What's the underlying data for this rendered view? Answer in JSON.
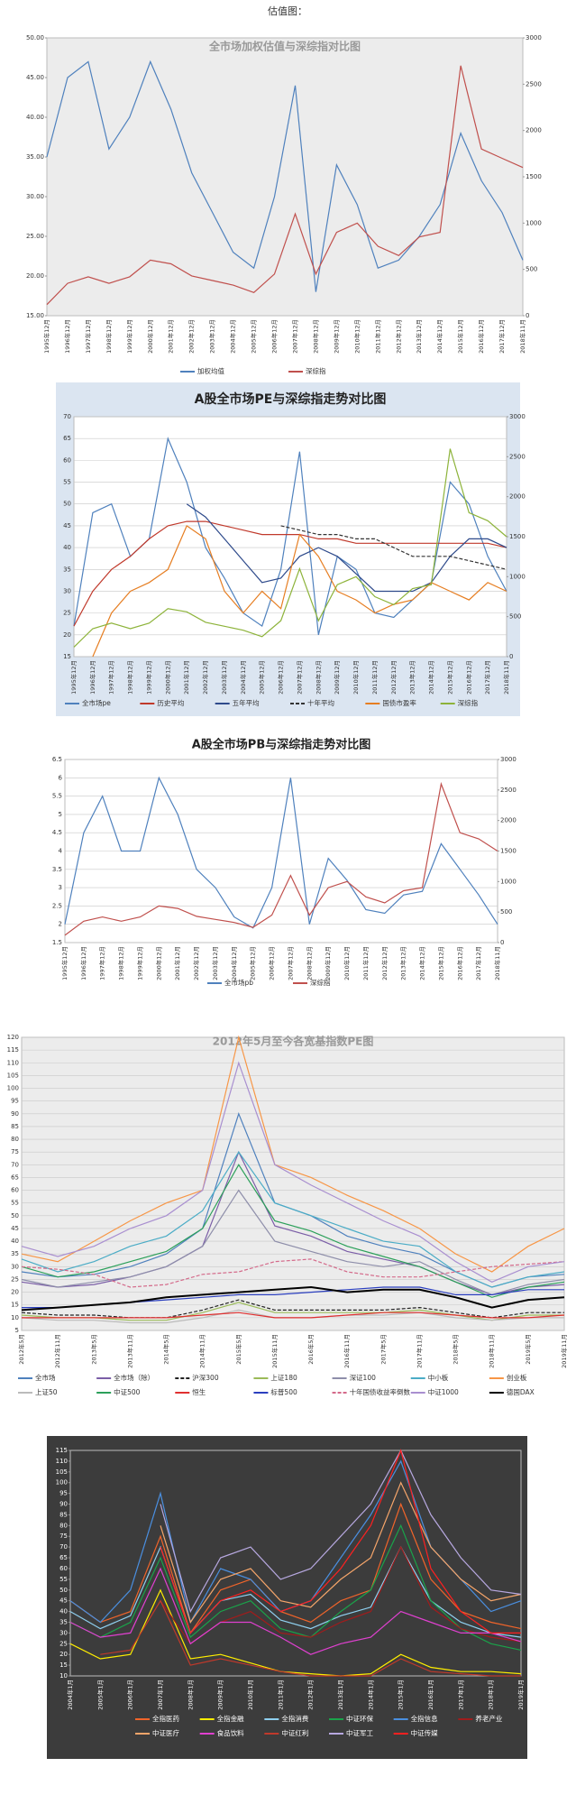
{
  "heading": "估值图：",
  "chart_data": [
    {
      "type": "line",
      "title": "全市场加权估值与深综指对比图",
      "plot_background": "#ececec",
      "grid": false,
      "categories": [
        "1995年12月",
        "1996年12月",
        "1997年12月",
        "1998年12月",
        "1999年12月",
        "2000年12月",
        "2001年12月",
        "2002年12月",
        "2003年12月",
        "2004年12月",
        "2005年12月",
        "2006年12月",
        "2007年12月",
        "2008年12月",
        "2009年12月",
        "2010年12月",
        "2011年12月",
        "2012年12月",
        "2013年12月",
        "2014年12月",
        "2015年12月",
        "2016年12月",
        "2017年12月",
        "2018年11月"
      ],
      "ylim": [
        15,
        50
      ],
      "yticks": [
        {
          "value": 15,
          "label": "15.00"
        },
        {
          "value": 20,
          "label": "20.00"
        },
        {
          "value": 25,
          "label": "25.00"
        },
        {
          "value": 30,
          "label": "30.00"
        },
        {
          "value": 35,
          "label": "35.00"
        },
        {
          "value": 40,
          "label": "40.00"
        },
        {
          "value": 45,
          "label": "45.00"
        },
        {
          "value": 50,
          "label": "50.00"
        }
      ],
      "y2lim": [
        0,
        3000
      ],
      "y2ticks": [
        0,
        500,
        1000,
        1500,
        2000,
        2500,
        3000
      ],
      "series": [
        {
          "name": "加权均值",
          "color": "#4f81bd",
          "values": [
            35,
            45,
            47,
            36,
            40,
            47,
            41,
            33,
            28,
            23,
            21,
            30,
            44,
            18,
            34,
            29,
            21,
            22,
            25,
            29,
            38,
            32,
            28,
            22
          ]
        },
        {
          "name": "深综指",
          "color": "#c0504d",
          "axis": "y2",
          "values": [
            120,
            350,
            420,
            350,
            420,
            600,
            560,
            430,
            380,
            330,
            250,
            450,
            1100,
            450,
            900,
            1000,
            750,
            650,
            850,
            900,
            2700,
            1800,
            1700,
            1600
          ]
        }
      ]
    },
    {
      "type": "line",
      "title": "A股全市场PE与深综指走势对比图",
      "plot_background": "#ffffff",
      "grid": true,
      "categories": [
        "1995年12月",
        "1996年12月",
        "1997年12月",
        "1998年12月",
        "1999年12月",
        "2000年12月",
        "2001年12月",
        "2002年12月",
        "2003年12月",
        "2004年12月",
        "2005年12月",
        "2006年12月",
        "2007年12月",
        "2008年12月",
        "2009年12月",
        "2010年12月",
        "2011年12月",
        "2012年12月",
        "2013年12月",
        "2014年12月",
        "2015年12月",
        "2016年12月",
        "2017年12月",
        "2018年11月"
      ],
      "ylim": [
        15,
        70
      ],
      "yticks": [
        15,
        20,
        25,
        30,
        35,
        40,
        45,
        50,
        55,
        60,
        65,
        70
      ],
      "y2lim": [
        0,
        3000
      ],
      "y2ticks": [
        0,
        500,
        1000,
        1500,
        2000,
        2500,
        3000
      ],
      "series": [
        {
          "name": "全市场pe",
          "color": "#4f81bd",
          "values": [
            22,
            48,
            50,
            38,
            42,
            65,
            55,
            40,
            33,
            25,
            22,
            35,
            62,
            20,
            38,
            35,
            25,
            24,
            28,
            32,
            55,
            50,
            38,
            30
          ]
        },
        {
          "name": "历史平均",
          "color": "#c0392b",
          "values": [
            22,
            30,
            35,
            38,
            42,
            45,
            46,
            46,
            45,
            44,
            43,
            43,
            43,
            42,
            42,
            41,
            41,
            41,
            41,
            41,
            41,
            41,
            41,
            40
          ]
        },
        {
          "name": "五年平均",
          "color": "#2e4a8b",
          "values": [
            null,
            null,
            null,
            null,
            null,
            null,
            50,
            47,
            42,
            37,
            32,
            33,
            38,
            40,
            38,
            34,
            30,
            30,
            30,
            32,
            38,
            42,
            42,
            40
          ]
        },
        {
          "name": "十年平均",
          "color": "#333333",
          "dash": true,
          "values": [
            null,
            null,
            null,
            null,
            null,
            null,
            null,
            null,
            null,
            null,
            null,
            45,
            44,
            43,
            43,
            42,
            42,
            40,
            38,
            38,
            38,
            37,
            36,
            35
          ]
        },
        {
          "name": "国债市盈率",
          "color": "#e67e22",
          "values": [
            null,
            15,
            25,
            30,
            32,
            35,
            45,
            42,
            30,
            25,
            30,
            26,
            43,
            38,
            30,
            28,
            25,
            27,
            28,
            32,
            30,
            28,
            32,
            30
          ]
        },
        {
          "name": "深综指",
          "color": "#8db33a",
          "axis": "y2",
          "values": [
            120,
            350,
            420,
            350,
            420,
            600,
            560,
            430,
            380,
            330,
            250,
            450,
            1100,
            450,
            900,
            1000,
            750,
            650,
            850,
            900,
            2600,
            1800,
            1700,
            1500
          ]
        }
      ]
    },
    {
      "type": "line",
      "title": "A股全市场PB与深综指走势对比图",
      "plot_background": "#ffffff",
      "grid": true,
      "categories": [
        "1995年12月",
        "1996年12月",
        "1997年12月",
        "1998年12月",
        "1999年12月",
        "2000年12月",
        "2001年12月",
        "2002年12月",
        "2003年12月",
        "2004年12月",
        "2005年12月",
        "2006年12月",
        "2007年12月",
        "2008年12月",
        "2009年12月",
        "2010年12月",
        "2011年12月",
        "2012年12月",
        "2013年12月",
        "2014年12月",
        "2015年12月",
        "2016年12月",
        "2017年12月",
        "2018年11月"
      ],
      "ylim": [
        1.5,
        6.5
      ],
      "yticks": [
        1.5,
        2,
        2.5,
        3,
        3.5,
        4,
        4.5,
        5,
        5.5,
        6,
        6.5
      ],
      "y2lim": [
        0,
        3000
      ],
      "y2ticks": [
        0,
        500,
        1000,
        1500,
        2000,
        2500,
        3000
      ],
      "series": [
        {
          "name": "全市场pb",
          "color": "#4f81bd",
          "values": [
            2,
            4.5,
            5.5,
            4,
            4,
            6,
            5,
            3.5,
            3,
            2.2,
            1.9,
            3,
            6,
            2,
            3.8,
            3.2,
            2.4,
            2.3,
            2.8,
            2.9,
            4.2,
            3.5,
            2.8,
            2
          ]
        },
        {
          "name": "深综指",
          "color": "#c0504d",
          "axis": "y2",
          "values": [
            120,
            350,
            420,
            350,
            420,
            600,
            560,
            430,
            380,
            330,
            250,
            450,
            1100,
            450,
            900,
            1000,
            750,
            650,
            850,
            900,
            2600,
            1800,
            1700,
            1500
          ]
        }
      ]
    },
    {
      "type": "line",
      "title": "2012年5月至今各宽基指数PE图",
      "plot_background": "#ececec",
      "grid": true,
      "categories": [
        "2012年5月",
        "2012年11月",
        "2013年5月",
        "2013年11月",
        "2014年5月",
        "2014年11月",
        "2015年5月",
        "2015年11月",
        "2016年5月",
        "2016年11月",
        "2017年5月",
        "2017年11月",
        "2018年5月",
        "2018年11月",
        "2019年5月",
        "2019年11月"
      ],
      "ylim": [
        5,
        120
      ],
      "yticks": [
        5,
        10,
        15,
        20,
        25,
        30,
        35,
        40,
        45,
        50,
        55,
        60,
        65,
        70,
        75,
        80,
        85,
        90,
        95,
        100,
        105,
        110,
        115,
        120
      ],
      "series": [
        {
          "name": "全市场",
          "color": "#4f81bd",
          "values": [
            28,
            26,
            27,
            30,
            35,
            45,
            90,
            55,
            50,
            42,
            38,
            35,
            28,
            22,
            26,
            27
          ]
        },
        {
          "name": "全市场（除）",
          "color": "#7b5ea7",
          "values": [
            24,
            22,
            23,
            26,
            30,
            38,
            75,
            46,
            42,
            36,
            33,
            30,
            24,
            19,
            22,
            23
          ]
        },
        {
          "name": "沪深300",
          "color": "#222222",
          "dash": true,
          "values": [
            12,
            11,
            11,
            10,
            10,
            13,
            17,
            13,
            13,
            13,
            13,
            14,
            12,
            10,
            12,
            12
          ]
        },
        {
          "name": "上证180",
          "color": "#9bbb59",
          "values": [
            11,
            10,
            10,
            9,
            9,
            12,
            16,
            12,
            12,
            12,
            12,
            13,
            11,
            9,
            11,
            11
          ]
        },
        {
          "name": "深证100",
          "color": "#8e8eaa",
          "values": [
            25,
            22,
            24,
            26,
            30,
            38,
            60,
            40,
            36,
            32,
            30,
            32,
            25,
            19,
            23,
            25
          ]
        },
        {
          "name": "中小板",
          "color": "#4bacc6",
          "values": [
            33,
            28,
            32,
            38,
            42,
            52,
            75,
            55,
            50,
            45,
            40,
            38,
            28,
            22,
            26,
            28
          ]
        },
        {
          "name": "创业板",
          "color": "#f79646",
          "values": [
            35,
            32,
            40,
            48,
            55,
            60,
            120,
            70,
            65,
            58,
            52,
            45,
            35,
            28,
            38,
            45
          ]
        },
        {
          "name": "上证50",
          "color": "#bbbbbb",
          "values": [
            10,
            9,
            9,
            8,
            8,
            10,
            13,
            10,
            10,
            11,
            11,
            12,
            10,
            9,
            10,
            10
          ]
        },
        {
          "name": "中证500",
          "color": "#2ca05a",
          "values": [
            30,
            26,
            28,
            32,
            36,
            45,
            70,
            48,
            44,
            38,
            34,
            30,
            24,
            18,
            22,
            24
          ]
        },
        {
          "name": "恒生",
          "color": "#e03030",
          "values": [
            10,
            10,
            10,
            10,
            10,
            11,
            12,
            10,
            10,
            11,
            12,
            12,
            11,
            10,
            10,
            11
          ]
        },
        {
          "name": "标普500",
          "color": "#2b3fbf",
          "values": [
            14,
            14,
            15,
            16,
            17,
            18,
            19,
            19,
            20,
            21,
            22,
            22,
            19,
            19,
            21,
            21
          ]
        },
        {
          "name": "十年国债收益率倒数",
          "color": "#d46a8a",
          "dash": true,
          "values": [
            30,
            29,
            27,
            22,
            23,
            27,
            28,
            32,
            33,
            28,
            26,
            26,
            28,
            30,
            31,
            32
          ]
        },
        {
          "name": "中证1000",
          "color": "#a98fd0",
          "values": [
            38,
            34,
            38,
            45,
            50,
            60,
            110,
            70,
            62,
            55,
            48,
            42,
            32,
            24,
            30,
            32
          ]
        },
        {
          "name": "德国DAX",
          "color": "#000000",
          "values": [
            13,
            14,
            15,
            16,
            18,
            19,
            20,
            21,
            22,
            20,
            21,
            21,
            18,
            14,
            17,
            18
          ]
        }
      ]
    },
    {
      "type": "line",
      "plot_background": "#3c3c3c",
      "text_color": "#ffffff",
      "grid": false,
      "categories": [
        "2004年1月",
        "2005年1月",
        "2006年1月",
        "2007年1月",
        "2008年1月",
        "2009年1月",
        "2010年1月",
        "2011年1月",
        "2012年1月",
        "2013年1月",
        "2014年1月",
        "2015年1月",
        "2016年1月",
        "2017年1月",
        "2018年1月",
        "2019年1月"
      ],
      "ylim": [
        10,
        115
      ],
      "yticks": [
        10,
        15,
        20,
        25,
        30,
        35,
        40,
        45,
        50,
        55,
        60,
        65,
        70,
        75,
        80,
        85,
        90,
        95,
        100,
        105,
        110,
        115
      ],
      "series": [
        {
          "name": "全指医药",
          "color": "#f0642a",
          "values": [
            45,
            35,
            40,
            75,
            30,
            50,
            55,
            40,
            35,
            45,
            50,
            90,
            55,
            40,
            35,
            32
          ]
        },
        {
          "name": "全指金融",
          "color": "#ffee00",
          "values": [
            25,
            18,
            20,
            50,
            18,
            20,
            16,
            12,
            11,
            10,
            11,
            20,
            14,
            12,
            12,
            11
          ]
        },
        {
          "name": "全指消费",
          "color": "#8fd0f0",
          "values": [
            40,
            32,
            38,
            70,
            30,
            45,
            48,
            36,
            32,
            38,
            42,
            70,
            45,
            35,
            30,
            28
          ]
        },
        {
          "name": "中证环保",
          "color": "#1aa34a",
          "values": [
            35,
            28,
            35,
            65,
            28,
            40,
            45,
            32,
            28,
            40,
            50,
            80,
            45,
            32,
            25,
            22
          ]
        },
        {
          "name": "全指信息",
          "color": "#4a8fe0",
          "values": [
            45,
            35,
            50,
            95,
            35,
            60,
            55,
            40,
            45,
            65,
            85,
            110,
            70,
            55,
            40,
            45
          ]
        },
        {
          "name": "养老产业",
          "color": "#a01c1c",
          "values": [
            null,
            null,
            null,
            45,
            25,
            35,
            40,
            30,
            28,
            35,
            40,
            70,
            42,
            32,
            28,
            26
          ]
        },
        {
          "name": "中证医疗",
          "color": "#f5a56a",
          "values": [
            null,
            null,
            null,
            80,
            35,
            55,
            60,
            45,
            42,
            55,
            65,
            100,
            70,
            55,
            45,
            48
          ]
        },
        {
          "name": "食品饮料",
          "color": "#e040d0",
          "values": [
            35,
            28,
            30,
            60,
            25,
            35,
            35,
            28,
            20,
            25,
            28,
            40,
            35,
            30,
            30,
            26
          ]
        },
        {
          "name": "中证红利",
          "color": "#c0392b",
          "values": [
            null,
            20,
            22,
            45,
            15,
            18,
            15,
            12,
            10,
            10,
            10,
            18,
            12,
            11,
            10,
            10
          ]
        },
        {
          "name": "中证军工",
          "color": "#b7a8e0",
          "values": [
            null,
            null,
            null,
            90,
            40,
            65,
            70,
            55,
            60,
            75,
            90,
            115,
            85,
            65,
            50,
            48
          ]
        },
        {
          "name": "中证传媒",
          "color": "#ff2020",
          "values": [
            null,
            null,
            null,
            70,
            30,
            45,
            50,
            40,
            45,
            60,
            80,
            115,
            60,
            40,
            30,
            30
          ]
        }
      ]
    }
  ]
}
